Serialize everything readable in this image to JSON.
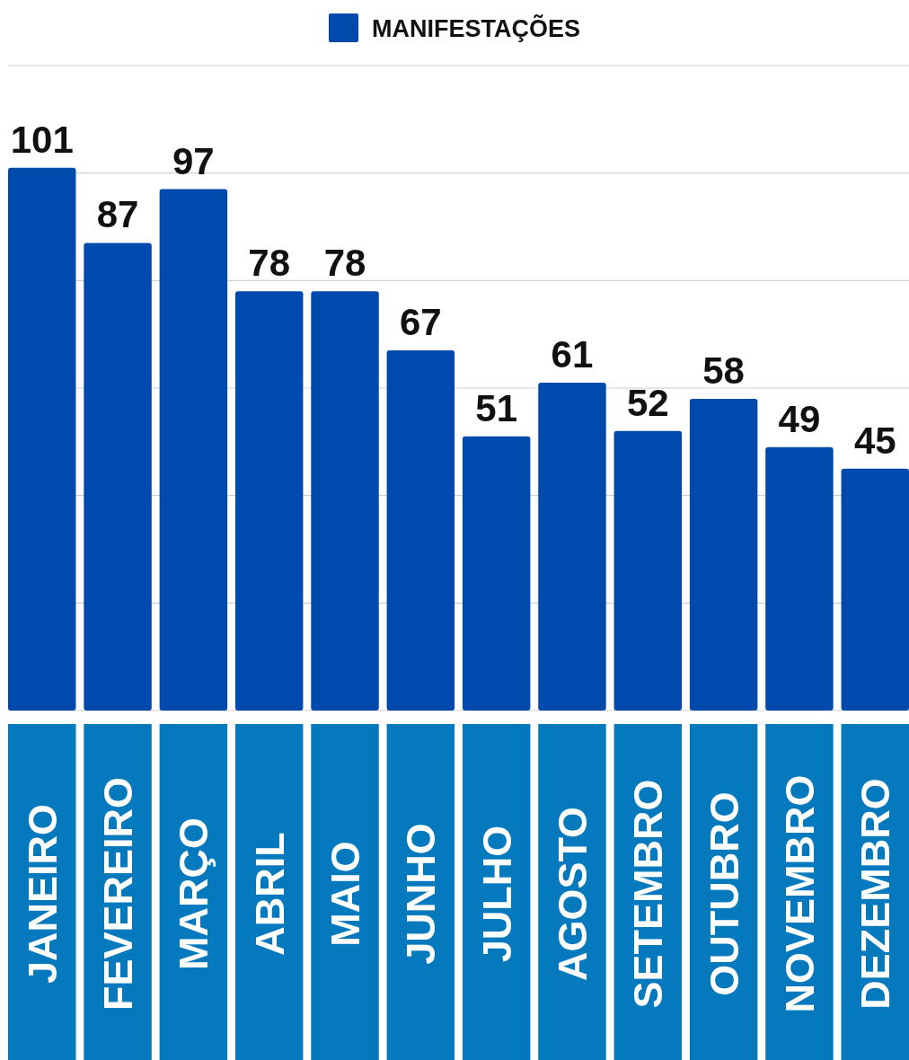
{
  "chart_data": {
    "type": "bar",
    "categories": [
      "JANEIRO",
      "FEVEREIRO",
      "MARÇO",
      "ABRIL",
      "MAIO",
      "JUNHO",
      "JULHO",
      "AGOSTO",
      "SETEMBRO",
      "OUTUBRO",
      "NOVEMBRO",
      "DEZEMBRO"
    ],
    "series": [
      {
        "name": "MANIFESTAÇÕES",
        "color": "#0049ad",
        "values": [
          101,
          87,
          97,
          78,
          78,
          67,
          51,
          61,
          52,
          58,
          49,
          45
        ]
      }
    ],
    "ylim": [
      0,
      120
    ],
    "yticks": [
      {
        "value": 0,
        "label": null
      },
      {
        "value": 20,
        "label": null
      },
      {
        "value": 40,
        "label": null
      },
      {
        "value": 60,
        "label": null
      },
      {
        "value": 80,
        "label": null
      },
      {
        "value": 100,
        "label": null
      },
      {
        "value": 120,
        "label": null
      }
    ],
    "grid": "y",
    "tick_labels": "x",
    "legend": "top",
    "data_labels": true
  }
}
